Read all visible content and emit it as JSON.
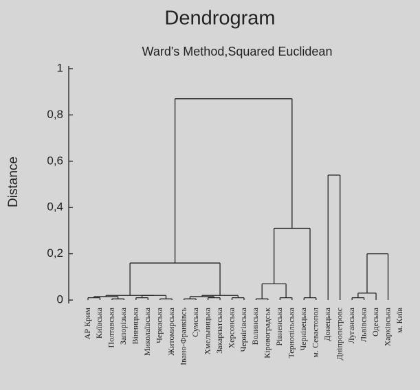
{
  "chart_data": {
    "type": "dendrogram",
    "title": "Dendrogram",
    "subtitle": "Ward's Method,Squared Euclidean",
    "ylabel": "Distance",
    "ylim": [
      0,
      1
    ],
    "yticks": [
      0,
      {
        "value": 0.2,
        "label": "0,2"
      },
      {
        "value": 0.4,
        "label": "0,4"
      },
      {
        "value": 0.6,
        "label": "0,6"
      },
      {
        "value": 0.8,
        "label": "0,8"
      },
      1
    ],
    "color": "#222222",
    "categories": [
      "АР Крим",
      "Київська",
      "Полтавська",
      "Запорізька",
      "Вінницька",
      "Миколаївська",
      "Черкаська",
      "Житомирська",
      "Івано-Франківсь",
      "Сумська",
      "Хмельницька",
      "Закарпатська",
      "Херсонська",
      "Чернігівська",
      "Волинська",
      "Кіровоградськ",
      "Рівненська",
      "Тернопільська",
      "Чернівецька",
      "м. Севастопол",
      "Донецька",
      "Дніпропетровс",
      "Луганська",
      "Львівська",
      "Одеська",
      "Харківська",
      "м. Київ"
    ],
    "merges": [
      {
        "children": [
          0,
          1
        ],
        "height": 0.01
      },
      {
        "children": [
          2,
          3
        ],
        "height": 0.005
      },
      {
        "children": [
          27,
          28
        ],
        "height": 0.015
      },
      {
        "children": [
          4,
          5
        ],
        "height": 0.01
      },
      {
        "children": [
          6,
          7
        ],
        "height": 0.005
      },
      {
        "children": [
          30,
          31
        ],
        "height": 0.02
      },
      {
        "children": [
          8,
          9
        ],
        "height": 0.005
      },
      {
        "children": [
          10,
          11
        ],
        "height": 0.01
      },
      {
        "children": [
          33,
          34
        ],
        "height": 0.015
      },
      {
        "children": [
          12,
          13
        ],
        "height": 0.01
      },
      {
        "children": [
          29,
          32
        ],
        "height": 0.02
      },
      {
        "children": [
          35,
          36
        ],
        "height": 0.02
      },
      {
        "children": [
          37,
          38
        ],
        "height": 0.16
      },
      {
        "children": [
          14,
          15
        ],
        "height": 0.005
      },
      {
        "children": [
          16,
          17
        ],
        "height": 0.01
      },
      {
        "children": [
          40,
          41
        ],
        "height": 0.07
      },
      {
        "children": [
          18,
          19
        ],
        "height": 0.01
      },
      {
        "children": [
          42,
          43
        ],
        "height": 0.31
      },
      {
        "children": [
          39,
          44
        ],
        "height": 0.87
      },
      {
        "children": [
          20,
          21
        ],
        "height": 0.54
      },
      {
        "children": [
          22,
          23
        ],
        "height": 0.01
      },
      {
        "children": [
          47,
          24
        ],
        "height": 0.03
      },
      {
        "children": [
          48,
          25
        ],
        "height": 0.2
      }
    ]
  }
}
